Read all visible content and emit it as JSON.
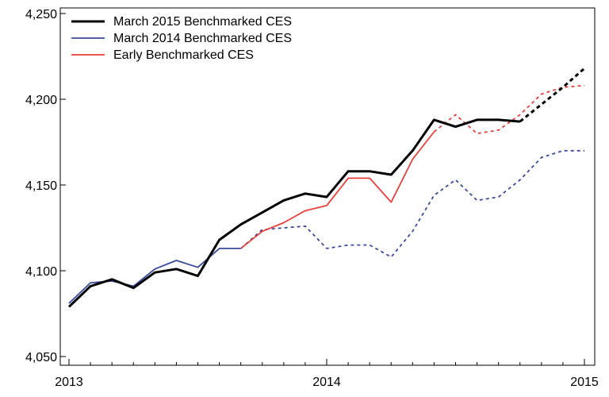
{
  "chart_data": {
    "type": "line",
    "title": "",
    "xlabel": "",
    "ylabel": "",
    "ylim": [
      4050,
      4250
    ],
    "xlim": [
      0,
      24
    ],
    "y_ticks": [
      4050,
      4100,
      4150,
      4200,
      4250
    ],
    "y_tick_labels": [
      "4,050",
      "4,100",
      "4,150",
      "4,200",
      "4,250"
    ],
    "x_ticks": [
      0,
      12,
      24
    ],
    "x_tick_labels": [
      "2013",
      "2014",
      "2015"
    ],
    "legend": "top-left",
    "grid": false,
    "series": [
      {
        "name": "March 2015 Benchmarked CES",
        "color": "#000000",
        "segments": [
          {
            "style": "solid",
            "x": [
              0,
              1,
              2,
              3,
              4,
              5,
              6,
              7,
              8,
              9,
              10,
              11,
              12,
              13,
              14,
              15,
              16,
              17,
              18,
              19,
              20,
              21
            ],
            "y": [
              4079,
              4091,
              4095,
              4090,
              4099,
              4101,
              4097,
              4118,
              4127,
              4134,
              4141,
              4145,
              4143,
              4158,
              4158,
              4156,
              4170,
              4188,
              4184,
              4188,
              4188,
              4187
            ]
          },
          {
            "style": "dashed",
            "x": [
              21,
              22,
              23,
              24
            ],
            "y": [
              4187,
              4197,
              4207,
              4218
            ]
          }
        ]
      },
      {
        "name": "March 2014 Benchmarked CES",
        "color": "#3b4a9c",
        "segments": [
          {
            "style": "solid",
            "x": [
              0,
              1,
              2,
              3,
              4,
              5,
              6,
              7,
              8
            ],
            "y": [
              4081,
              4093,
              4094,
              4091,
              4101,
              4106,
              4102,
              4113,
              4113
            ]
          },
          {
            "style": "dashed",
            "x": [
              8,
              9,
              10,
              11,
              12,
              13,
              14,
              15,
              16,
              17,
              18,
              19,
              20,
              21,
              22,
              23,
              24
            ],
            "y": [
              4113,
              4124,
              4125,
              4126,
              4113,
              4115,
              4115,
              4108,
              4123,
              4144,
              4153,
              4141,
              4143,
              4153,
              4166,
              4170,
              4170
            ]
          }
        ]
      },
      {
        "name": "Early Benchmarked CES",
        "color": "#e8413c",
        "segments": [
          {
            "style": "solid",
            "x": [
              8,
              9,
              10,
              11,
              12,
              13,
              14,
              15,
              16,
              17
            ],
            "y": [
              4113,
              4123,
              4128,
              4135,
              4138,
              4154,
              4154,
              4140,
              4165,
              4181
            ]
          },
          {
            "style": "dashed",
            "x": [
              17,
              18,
              19,
              20,
              21,
              22,
              23,
              24
            ],
            "y": [
              4181,
              4191,
              4180,
              4182,
              4191,
              4203,
              4207,
              4208
            ]
          }
        ]
      }
    ]
  }
}
